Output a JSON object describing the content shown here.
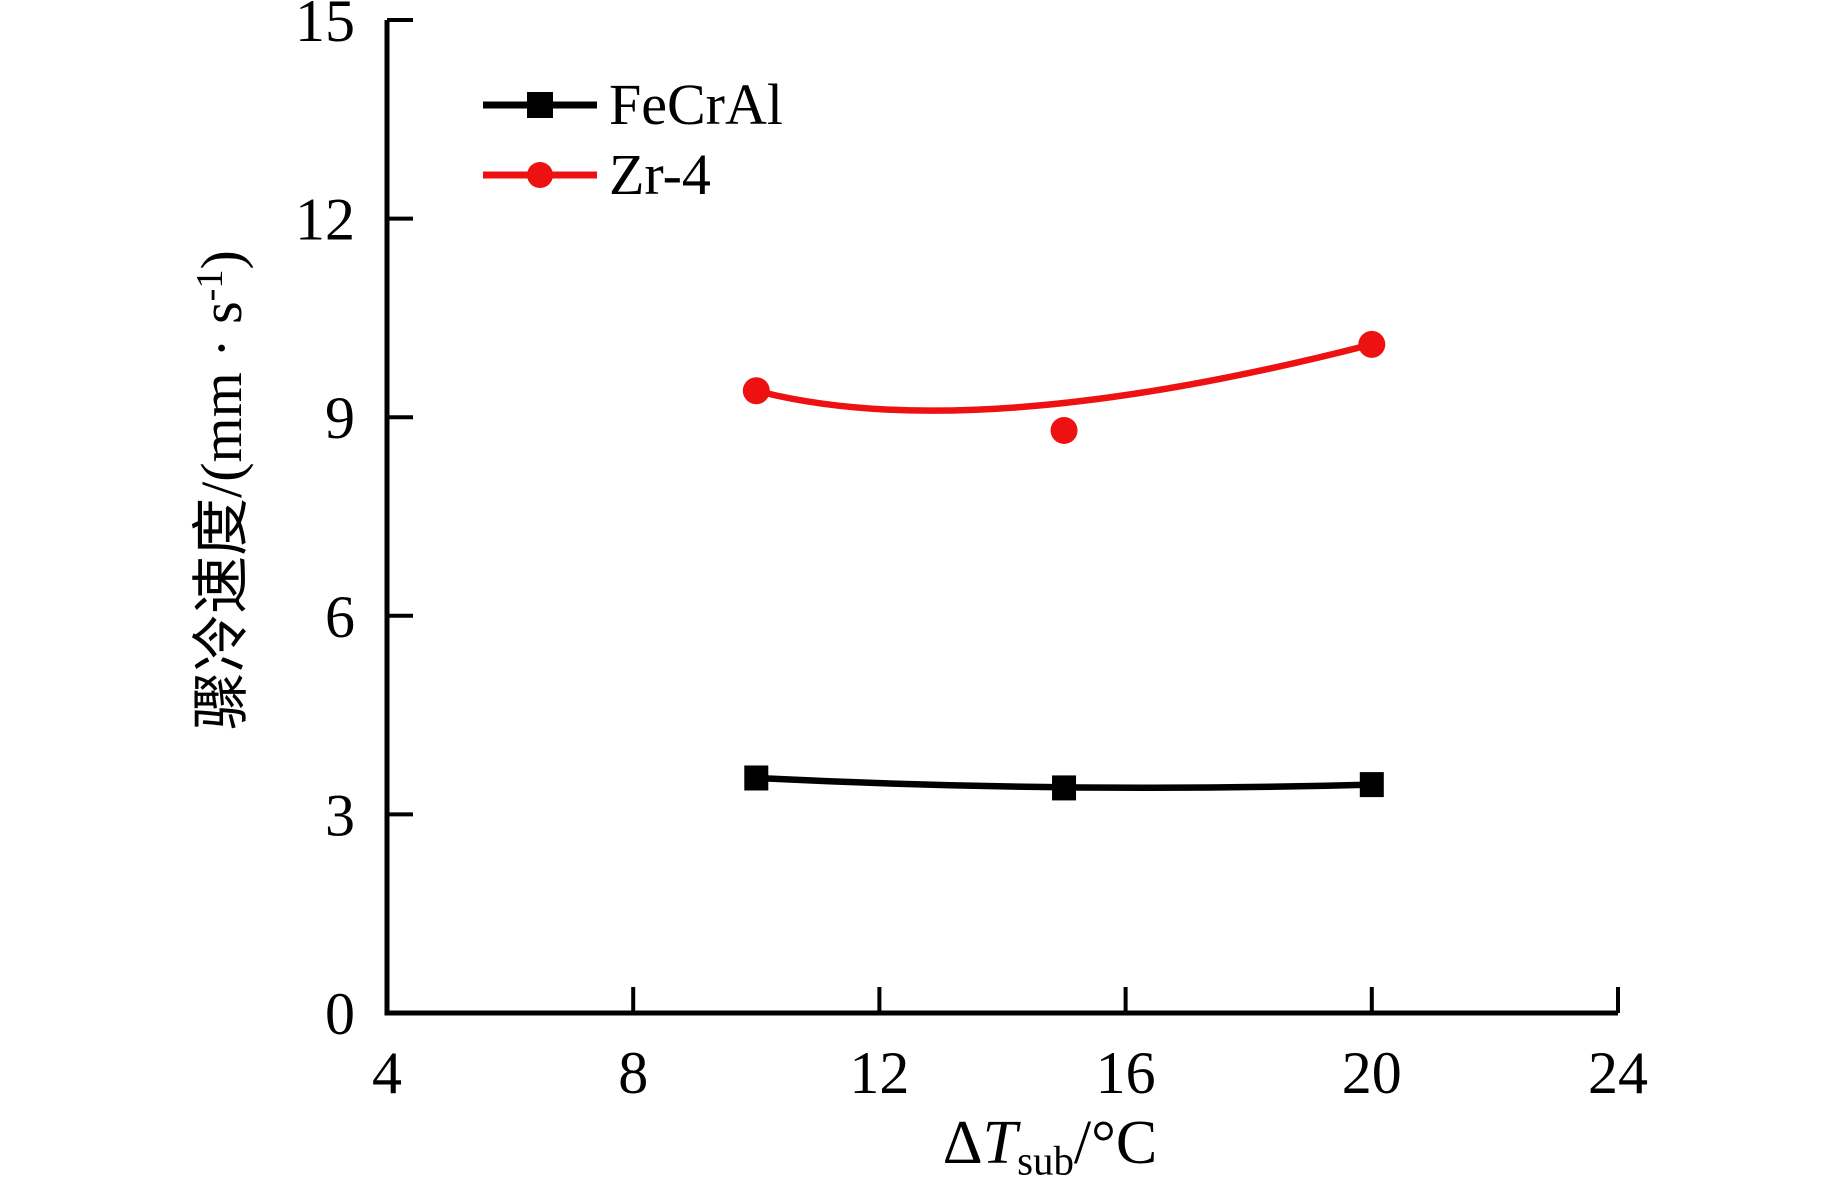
{
  "figure": {
    "background": "#ffffff",
    "text_color": "#000000"
  },
  "chart_data": {
    "type": "line",
    "title": "",
    "xlabel": "ΔT_sub/°C",
    "ylabel": "骤冷速度/(mm·s⁻¹)",
    "xlim": [
      4,
      24
    ],
    "ylim": [
      0,
      15
    ],
    "x_ticks": [
      4,
      8,
      12,
      16,
      20,
      24
    ],
    "y_ticks": [
      0,
      3,
      6,
      9,
      12,
      15
    ],
    "grid": false,
    "legend_position": "upper-left",
    "axis_labels": {
      "x": {
        "delta": "Δ",
        "symbol": "T",
        "subscript": "sub",
        "rest": "/°C"
      },
      "y": {
        "main": "骤冷速度/(mm · s",
        "superscript": "-1",
        "close": ")"
      }
    },
    "series": [
      {
        "name": "FeCrAl",
        "color": "#000000",
        "marker": "square",
        "x": [
          10,
          15,
          20
        ],
        "y": [
          3.55,
          3.4,
          3.45
        ],
        "fit_control": [
          15,
          3.32
        ]
      },
      {
        "name": "Zr-4",
        "color": "#ee1111",
        "marker": "circle",
        "x": [
          10,
          15,
          20
        ],
        "y": [
          9.4,
          8.8,
          10.1
        ],
        "fit_control": [
          13.5,
          8.55
        ]
      }
    ]
  }
}
